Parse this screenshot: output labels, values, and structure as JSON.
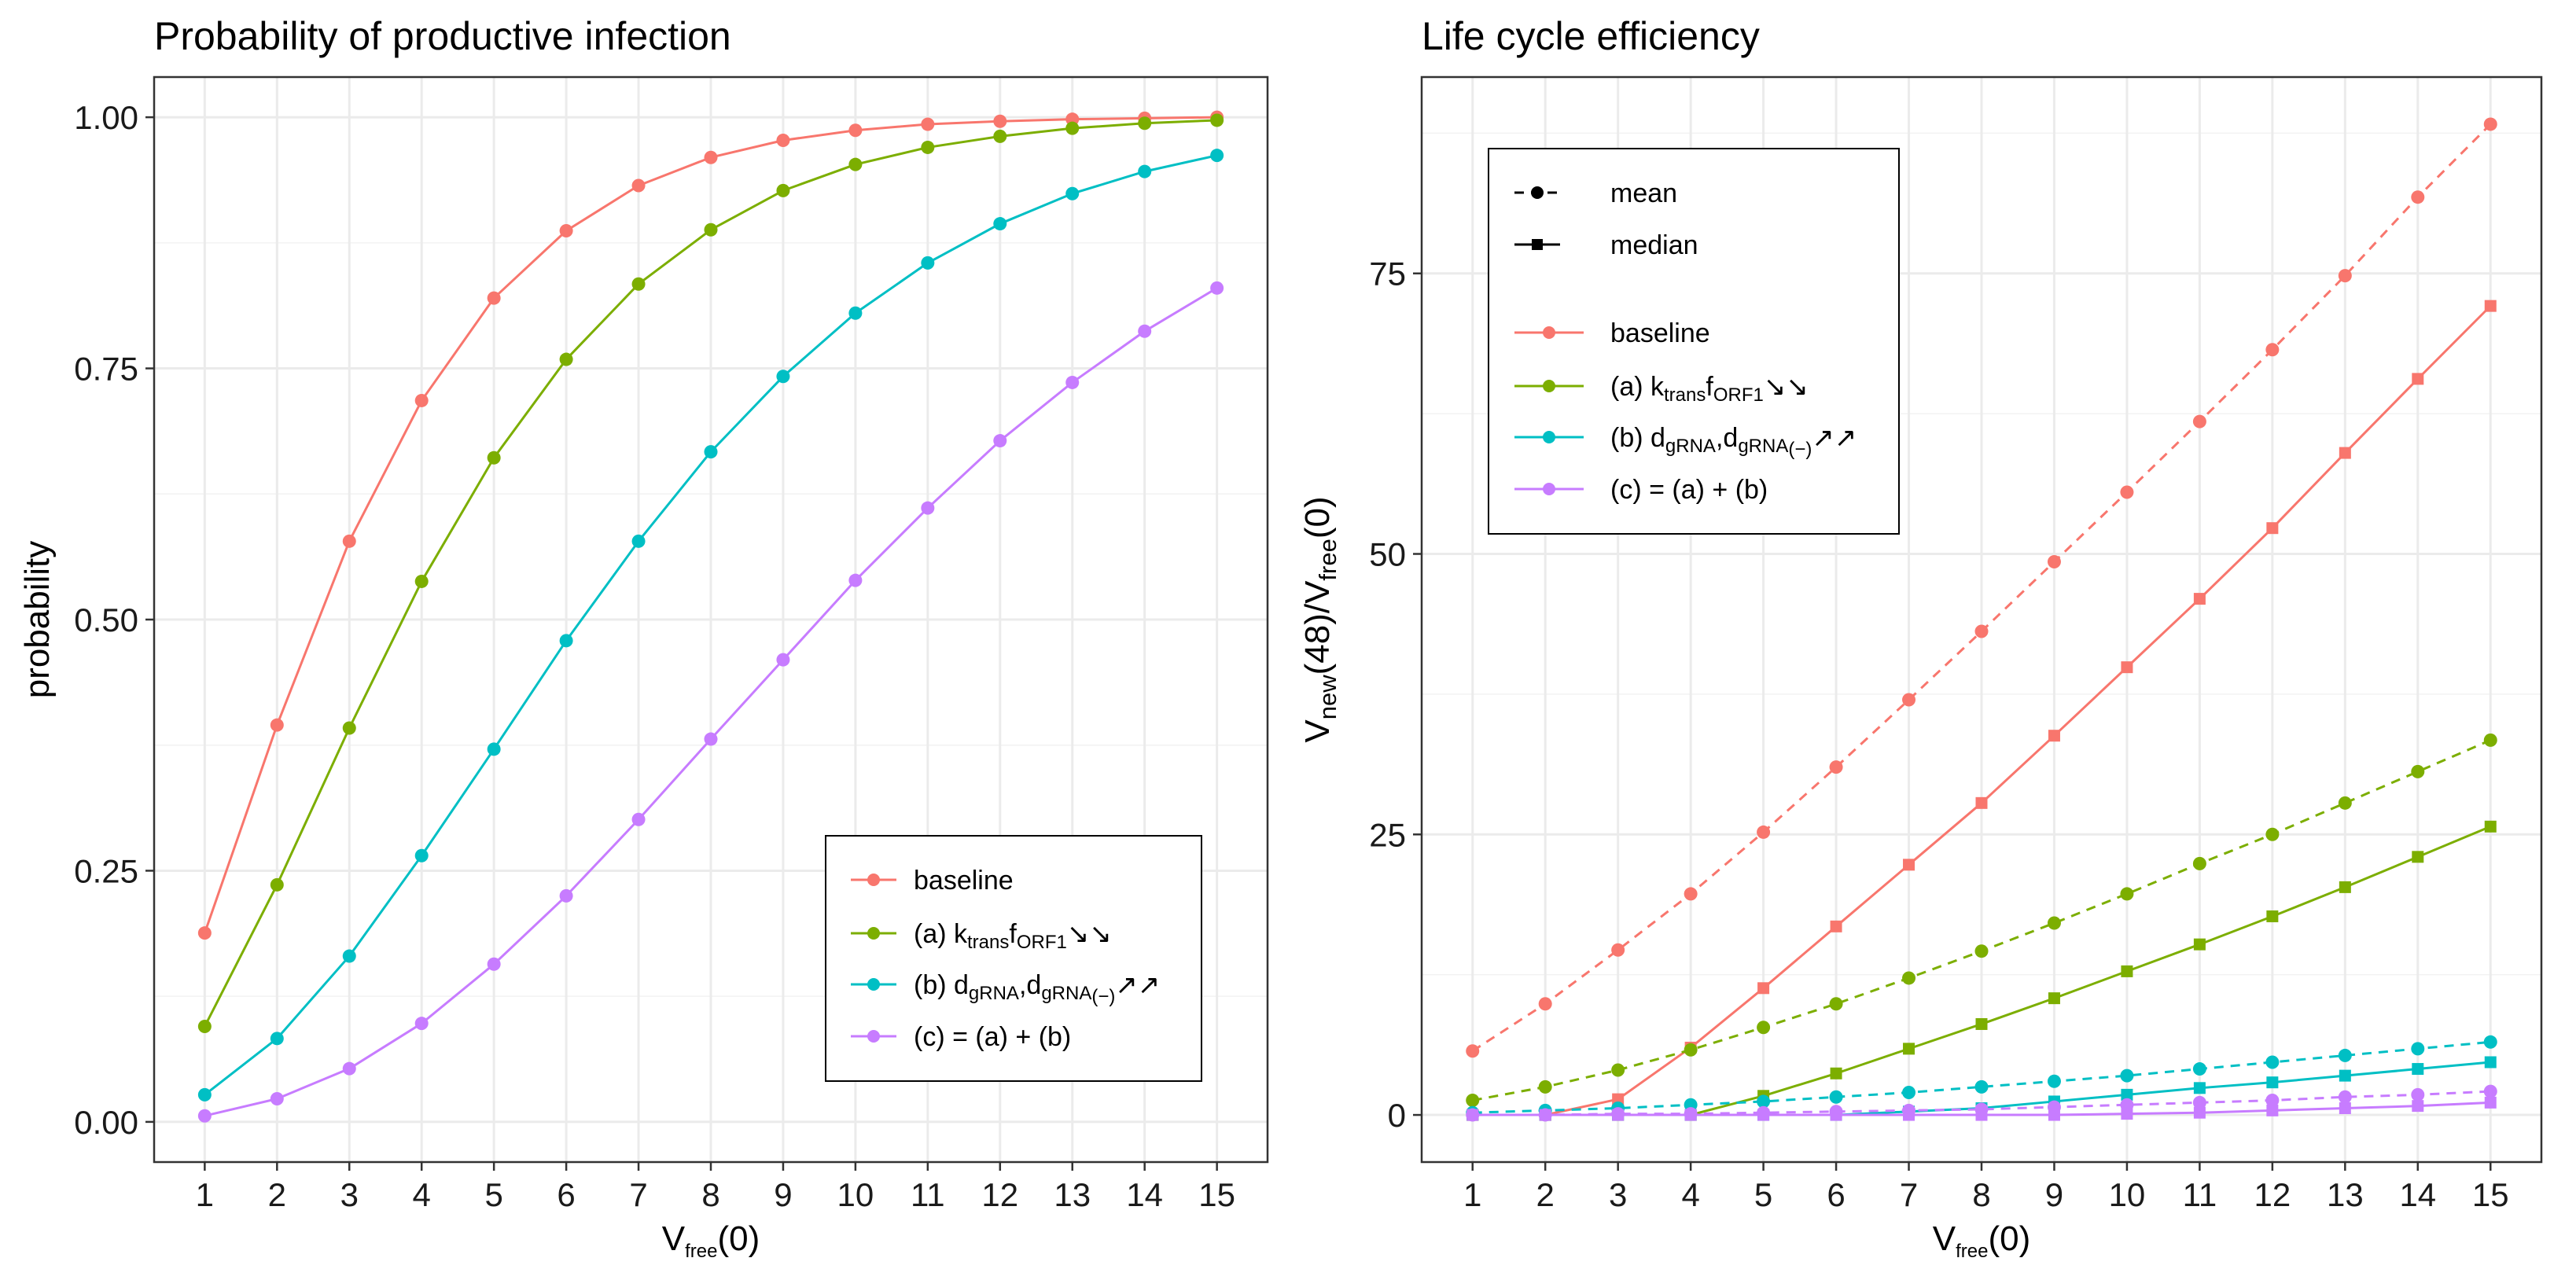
{
  "chart_data": [
    {
      "type": "line",
      "title": "Probability of productive infection",
      "xlabel": {
        "base": "V",
        "sub": "free",
        "suffix": "(0)"
      },
      "ylabel": "probability",
      "x": [
        1,
        2,
        3,
        4,
        5,
        6,
        7,
        8,
        9,
        10,
        11,
        12,
        13,
        14,
        15
      ],
      "xlim": [
        0.3,
        15.7
      ],
      "ylim": [
        -0.04,
        1.04
      ],
      "yticks": [
        0,
        0.25,
        0.5,
        0.75,
        1
      ],
      "yticklabels": [
        "0.00",
        "0.25",
        "0.50",
        "0.75",
        "1.00"
      ],
      "legend_position": "bottom-right",
      "series": [
        {
          "key": "baseline",
          "color": "#F8766D",
          "values": [
            0.188,
            0.395,
            0.578,
            0.718,
            0.82,
            0.887,
            0.932,
            0.96,
            0.977,
            0.987,
            0.993,
            0.996,
            0.998,
            0.999,
            1.0
          ]
        },
        {
          "key": "a",
          "color": "#7CAE00",
          "values": [
            0.095,
            0.236,
            0.392,
            0.538,
            0.661,
            0.759,
            0.834,
            0.888,
            0.927,
            0.953,
            0.97,
            0.981,
            0.989,
            0.994,
            0.997
          ]
        },
        {
          "key": "b",
          "color": "#00BFC4",
          "values": [
            0.027,
            0.083,
            0.165,
            0.265,
            0.371,
            0.479,
            0.578,
            0.667,
            0.742,
            0.805,
            0.855,
            0.894,
            0.924,
            0.946,
            0.962
          ]
        },
        {
          "key": "c",
          "color": "#C77CFF",
          "values": [
            0.006,
            0.023,
            0.053,
            0.098,
            0.157,
            0.225,
            0.301,
            0.381,
            0.46,
            0.539,
            0.611,
            0.678,
            0.736,
            0.787,
            0.83
          ]
        }
      ]
    },
    {
      "type": "line",
      "title": "Life cycle efficiency",
      "xlabel": {
        "base": "V",
        "sub": "free",
        "suffix": "(0)"
      },
      "ylabel": {
        "p1": "V",
        "sub1": "new",
        "p2": "(48)/V",
        "sub2": "free",
        "p3": "(0)"
      },
      "x": [
        1,
        2,
        3,
        4,
        5,
        6,
        7,
        8,
        9,
        10,
        11,
        12,
        13,
        14,
        15
      ],
      "xlim": [
        0.3,
        15.7
      ],
      "ylim": [
        -4.2,
        92.5
      ],
      "yticks": [
        0,
        25,
        50,
        75
      ],
      "yticklabels": [
        "0",
        "25",
        "50",
        "75"
      ],
      "legend_position": "top-left",
      "stat_legend": [
        {
          "key": "mean",
          "label": "mean",
          "dash": true,
          "marker": "circle"
        },
        {
          "key": "median",
          "label": "median",
          "dash": false,
          "marker": "square"
        }
      ],
      "series": [
        {
          "key": "baseline",
          "color": "#F8766D",
          "mean": [
            5.7,
            9.9,
            14.7,
            19.7,
            25.2,
            31.0,
            37.0,
            43.1,
            49.3,
            55.5,
            61.8,
            68.2,
            74.8,
            81.8,
            88.3
          ],
          "median": [
            0,
            0,
            1.4,
            6.0,
            11.3,
            16.8,
            22.3,
            27.8,
            33.8,
            39.9,
            46.0,
            52.3,
            59.0,
            65.6,
            72.1
          ]
        },
        {
          "key": "a",
          "color": "#7CAE00",
          "mean": [
            1.3,
            2.5,
            4.0,
            5.8,
            7.8,
            9.9,
            12.2,
            14.6,
            17.1,
            19.7,
            22.4,
            25.0,
            27.8,
            30.6,
            33.4
          ],
          "median": [
            0,
            0,
            0,
            0,
            1.7,
            3.7,
            5.9,
            8.1,
            10.4,
            12.8,
            15.2,
            17.7,
            20.3,
            23.0,
            25.7
          ]
        },
        {
          "key": "b",
          "color": "#00BFC4",
          "mean": [
            0.2,
            0.4,
            0.6,
            0.9,
            1.2,
            1.6,
            2.0,
            2.5,
            3.0,
            3.5,
            4.1,
            4.7,
            5.3,
            5.9,
            6.5
          ],
          "median": [
            0,
            0,
            0,
            0,
            0,
            0,
            0.3,
            0.6,
            1.2,
            1.8,
            2.4,
            2.9,
            3.5,
            4.1,
            4.7
          ]
        },
        {
          "key": "c",
          "color": "#C77CFF",
          "mean": [
            0,
            0,
            0.1,
            0.1,
            0.2,
            0.3,
            0.4,
            0.5,
            0.7,
            0.9,
            1.1,
            1.3,
            1.6,
            1.8,
            2.1
          ],
          "median": [
            0,
            0,
            0,
            0,
            0,
            0,
            0,
            0,
            0,
            0.1,
            0.2,
            0.4,
            0.6,
            0.8,
            1.1
          ]
        }
      ]
    }
  ],
  "legend": {
    "baseline": "baseline",
    "a": {
      "prefix": "(a) k",
      "sub1": "trans",
      "mid": "f",
      "sub2": "ORF1",
      "arrows": "↘↘"
    },
    "b": {
      "prefix": "(b) d",
      "sub1": "gRNA",
      "mid": ",d",
      "sub2": "gRNA",
      "sub2b": "(−)",
      "arrows": "↗↗"
    },
    "c": "(c) = (a) + (b)"
  }
}
